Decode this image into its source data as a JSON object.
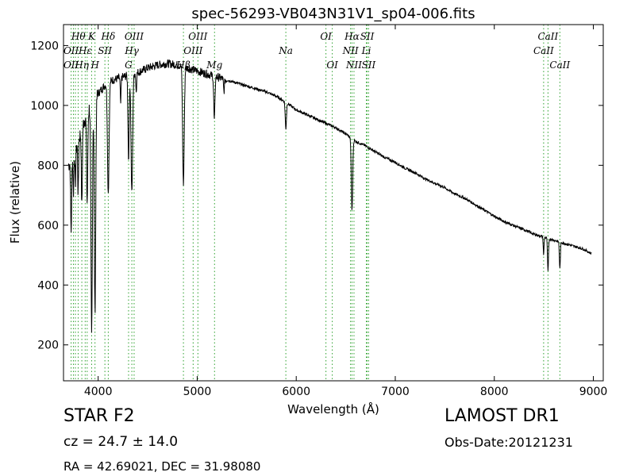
{
  "chart_data": {
    "type": "line",
    "title": "spec-56293-VB043N31V1_sp04-006.fits",
    "xlabel": "Wavelength (Å)",
    "ylabel": "Flux (relative)",
    "xlim": [
      3650,
      9100
    ],
    "ylim": [
      80,
      1270
    ],
    "xticks": [
      4000,
      5000,
      6000,
      7000,
      8000,
      9000
    ],
    "yticks": [
      200,
      400,
      600,
      800,
      1000,
      1200
    ],
    "grid": false,
    "series": [
      {
        "name": "",
        "color": "#000000",
        "continuum": [
          [
            3700,
            800
          ],
          [
            3780,
            860
          ],
          [
            3860,
            950
          ],
          [
            3920,
            1000
          ],
          [
            3960,
            1020
          ],
          [
            4000,
            1040
          ],
          [
            4050,
            1060
          ],
          [
            4100,
            1080
          ],
          [
            4200,
            1090
          ],
          [
            4300,
            1100
          ],
          [
            4400,
            1110
          ],
          [
            4500,
            1125
          ],
          [
            4600,
            1135
          ],
          [
            4700,
            1140
          ],
          [
            4800,
            1135
          ],
          [
            4900,
            1125
          ],
          [
            5000,
            1115
          ],
          [
            5100,
            1105
          ],
          [
            5200,
            1095
          ],
          [
            5300,
            1085
          ],
          [
            5400,
            1075
          ],
          [
            5500,
            1065
          ],
          [
            5600,
            1055
          ],
          [
            5700,
            1045
          ],
          [
            5800,
            1030
          ],
          [
            5900,
            1010
          ],
          [
            6000,
            985
          ],
          [
            6100,
            970
          ],
          [
            6200,
            955
          ],
          [
            6300,
            940
          ],
          [
            6400,
            925
          ],
          [
            6500,
            905
          ],
          [
            6600,
            880
          ],
          [
            6700,
            865
          ],
          [
            6800,
            845
          ],
          [
            6900,
            825
          ],
          [
            7000,
            810
          ],
          [
            7100,
            790
          ],
          [
            7200,
            775
          ],
          [
            7300,
            755
          ],
          [
            7400,
            740
          ],
          [
            7500,
            725
          ],
          [
            7600,
            705
          ],
          [
            7700,
            690
          ],
          [
            7800,
            670
          ],
          [
            7900,
            650
          ],
          [
            8000,
            630
          ],
          [
            8100,
            612
          ],
          [
            8200,
            598
          ],
          [
            8300,
            585
          ],
          [
            8400,
            570
          ],
          [
            8500,
            560
          ],
          [
            8600,
            550
          ],
          [
            8700,
            540
          ],
          [
            8800,
            530
          ],
          [
            8900,
            520
          ],
          [
            8980,
            505
          ]
        ],
        "absorption_features": [
          {
            "wavelength": 3727,
            "depth": 240,
            "width": 5
          },
          {
            "wavelength": 3750,
            "depth": 130,
            "width": 4
          },
          {
            "wavelength": 3770,
            "depth": 120,
            "width": 4
          },
          {
            "wavelength": 3798,
            "depth": 180,
            "width": 4
          },
          {
            "wavelength": 3835,
            "depth": 260,
            "width": 5
          },
          {
            "wavelength": 3889,
            "depth": 300,
            "width": 6
          },
          {
            "wavelength": 3934,
            "depth": 780,
            "width": 7
          },
          {
            "wavelength": 3968,
            "depth": 720,
            "width": 7
          },
          {
            "wavelength": 4102,
            "depth": 370,
            "width": 8
          },
          {
            "wavelength": 4227,
            "depth": 90,
            "width": 4
          },
          {
            "wavelength": 4307,
            "depth": 280,
            "width": 6
          },
          {
            "wavelength": 4340,
            "depth": 400,
            "width": 8
          },
          {
            "wavelength": 4384,
            "depth": 60,
            "width": 4
          },
          {
            "wavelength": 4861,
            "depth": 390,
            "width": 8
          },
          {
            "wavelength": 5173,
            "depth": 150,
            "width": 6
          },
          {
            "wavelength": 5270,
            "depth": 40,
            "width": 5
          },
          {
            "wavelength": 5895,
            "depth": 90,
            "width": 6
          },
          {
            "wavelength": 6563,
            "depth": 240,
            "width": 7
          },
          {
            "wavelength": 8498,
            "depth": 60,
            "width": 4
          },
          {
            "wavelength": 8542,
            "depth": 110,
            "width": 5
          },
          {
            "wavelength": 8662,
            "depth": 90,
            "width": 5
          }
        ]
      }
    ],
    "reference_lines": {
      "color": "#2ca02c",
      "wavelengths": [
        3727,
        3750,
        3770,
        3798,
        3835,
        3869,
        3889,
        3934,
        3968,
        4068,
        4102,
        4307,
        4340,
        4363,
        4861,
        4959,
        5007,
        5175,
        5895,
        6300,
        6364,
        6548,
        6563,
        6583,
        6708,
        6716,
        6731,
        8498,
        8542,
        8662
      ]
    },
    "line_labels": [
      {
        "text": "Hθ",
        "wavelength": 3800,
        "row": 0
      },
      {
        "text": "K",
        "wavelength": 3934,
        "row": 0
      },
      {
        "text": "Hδ",
        "wavelength": 4102,
        "row": 0
      },
      {
        "text": "OIII",
        "wavelength": 4363,
        "row": 0
      },
      {
        "text": "OIII",
        "wavelength": 5007,
        "row": 0
      },
      {
        "text": "OI",
        "wavelength": 6300,
        "row": 0
      },
      {
        "text": "Hα",
        "wavelength": 6563,
        "row": 0
      },
      {
        "text": "SII",
        "wavelength": 6716,
        "row": 0
      },
      {
        "text": "CaII",
        "wavelength": 8542,
        "row": 0
      },
      {
        "text": "Hγ",
        "wavelength": 4340,
        "row": 1
      },
      {
        "text": "OII",
        "wavelength": 3727,
        "row": 1
      },
      {
        "text": "Hε",
        "wavelength": 3870,
        "row": 1
      },
      {
        "text": "SII",
        "wavelength": 4068,
        "row": 1
      },
      {
        "text": "OIII",
        "wavelength": 4959,
        "row": 1
      },
      {
        "text": "Na",
        "wavelength": 5895,
        "row": 1
      },
      {
        "text": "NII",
        "wavelength": 6548,
        "row": 1
      },
      {
        "text": "Li",
        "wavelength": 6708,
        "row": 1
      },
      {
        "text": "CaII",
        "wavelength": 8498,
        "row": 1
      },
      {
        "text": "OII",
        "wavelength": 3727,
        "row": 2
      },
      {
        "text": "Hη",
        "wavelength": 3835,
        "row": 2
      },
      {
        "text": "H",
        "wavelength": 3968,
        "row": 2
      },
      {
        "text": "G",
        "wavelength": 4307,
        "row": 2
      },
      {
        "text": "Hβ",
        "wavelength": 4861,
        "row": 2
      },
      {
        "text": "Mg",
        "wavelength": 5175,
        "row": 2
      },
      {
        "text": "OI",
        "wavelength": 6364,
        "row": 2
      },
      {
        "text": "NII",
        "wavelength": 6583,
        "row": 2
      },
      {
        "text": "SII",
        "wavelength": 6731,
        "row": 2
      },
      {
        "text": "CaII",
        "wavelength": 8662,
        "row": 2
      }
    ]
  },
  "info": {
    "object_class": "STAR   F2",
    "survey": "LAMOST DR1",
    "redshift": "cz = 24.7 ± 14.0",
    "obs_date": "Obs-Date:20121231",
    "coordinates": "RA = 42.69021, DEC = 31.98080"
  }
}
